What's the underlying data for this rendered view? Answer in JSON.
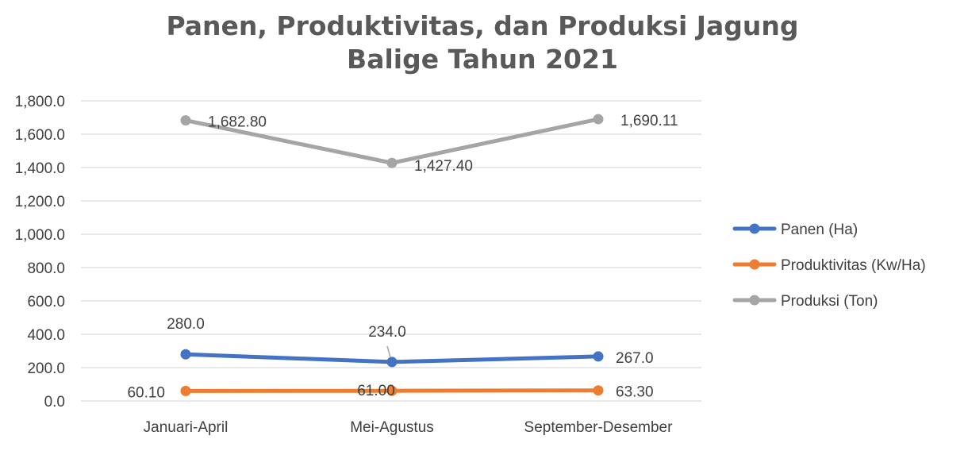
{
  "chart_data": {
    "type": "line",
    "title": "Panen, Produktivitas, dan Produksi Jagung Balige Tahun 2021",
    "title_lines": [
      "Panen, Produktivitas, dan Produksi Jagung",
      "Balige Tahun 2021"
    ],
    "categories": [
      "Januari-April",
      "Mei-Agustus",
      "September-Desember"
    ],
    "ylim": [
      0,
      1800
    ],
    "yticks": [
      "0.0",
      "200.0",
      "400.0",
      "600.0",
      "800.0",
      "1,000.0",
      "1,200.0",
      "1,400.0",
      "1,600.0",
      "1,800.0"
    ],
    "ytick_values": [
      0,
      200,
      400,
      600,
      800,
      1000,
      1200,
      1400,
      1600,
      1800
    ],
    "grid": true,
    "legend_position": "right",
    "series": [
      {
        "name": "Panen (Ha)",
        "color": "#4472c4",
        "values": [
          280.0,
          234.0,
          267.0
        ],
        "labels": [
          "280.0",
          "234.0",
          "267.0"
        ]
      },
      {
        "name": "Produktivitas (Kw/Ha)",
        "color": "#ed7d31",
        "values": [
          60.1,
          61.0,
          63.3
        ],
        "labels": [
          "60.10",
          "61.00",
          "63.30"
        ]
      },
      {
        "name": "Produksi (Ton)",
        "color": "#a5a5a5",
        "values": [
          1682.8,
          1427.4,
          1690.11
        ],
        "labels": [
          "1,682.80",
          "1,427.40",
          "1,690.11"
        ]
      }
    ]
  }
}
